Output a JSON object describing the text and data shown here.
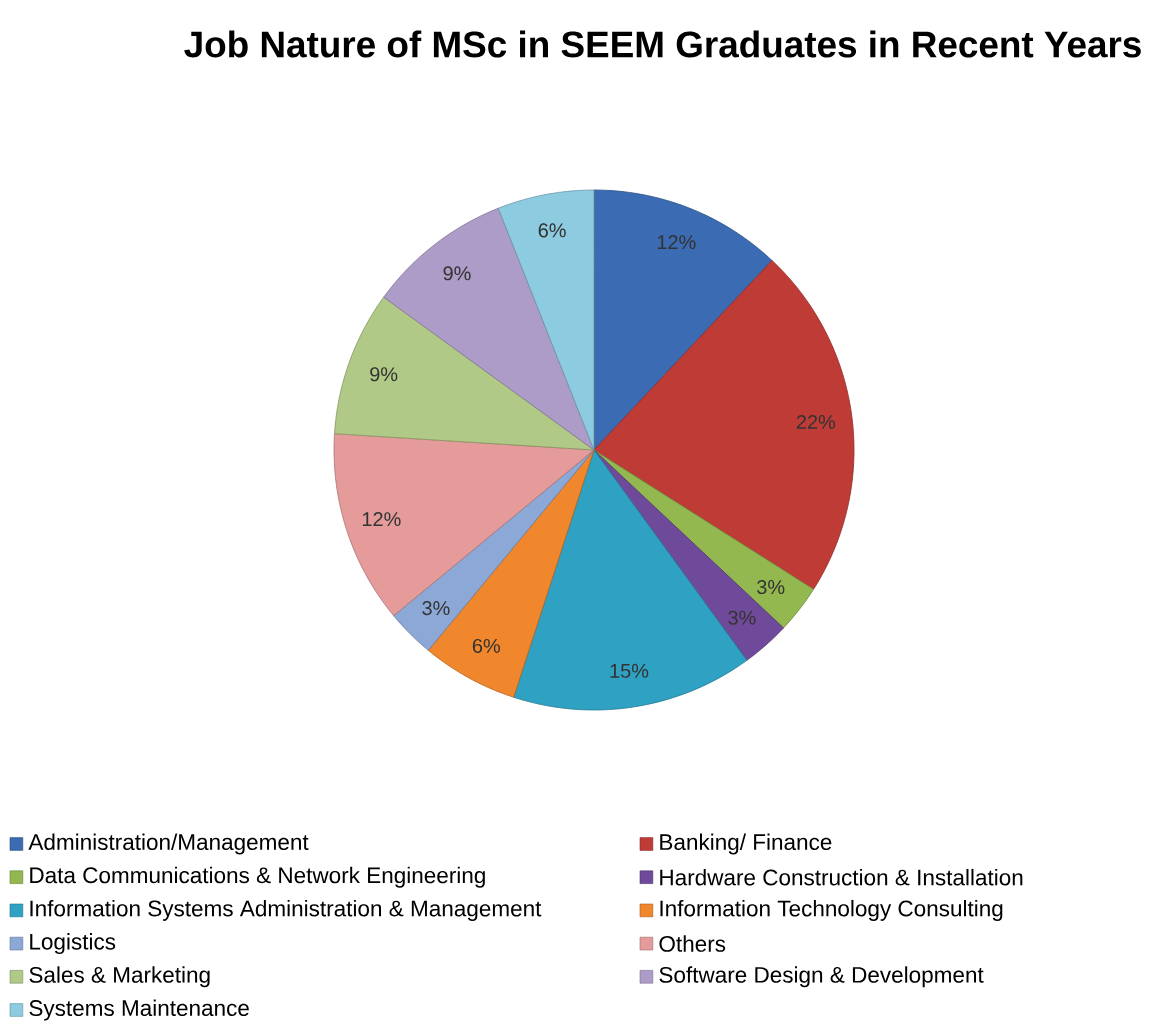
{
  "chart_data": {
    "type": "pie",
    "title": "Job Nature of MSc in SEEM Graduates in Recent Years",
    "categories": [
      "Administration/Management",
      "Banking/ Finance",
      "Data Communications & Network Engineering",
      "Hardware Construction & Installation",
      "Information Systems Administration & Management",
      "Information Technology Consulting",
      "Logistics",
      "Others",
      "Sales & Marketing",
      "Software Design & Development",
      "Systems Maintenance"
    ],
    "values": [
      12,
      22,
      3,
      3,
      15,
      6,
      3,
      12,
      9,
      9,
      6
    ],
    "value_labels": [
      "12%",
      "22%",
      "3%",
      "3%",
      "15%",
      "6%",
      "3%",
      "12%",
      "9%",
      "9%",
      "6%"
    ],
    "colors": [
      "#3b6cb3",
      "#bf3b36",
      "#92b84f",
      "#6f4a9a",
      "#2fa1c3",
      "#f0872d",
      "#8ca8d6",
      "#e49b9a",
      "#b0c986",
      "#ae9cc8",
      "#8dcbe0"
    ],
    "legend": "bottom"
  }
}
